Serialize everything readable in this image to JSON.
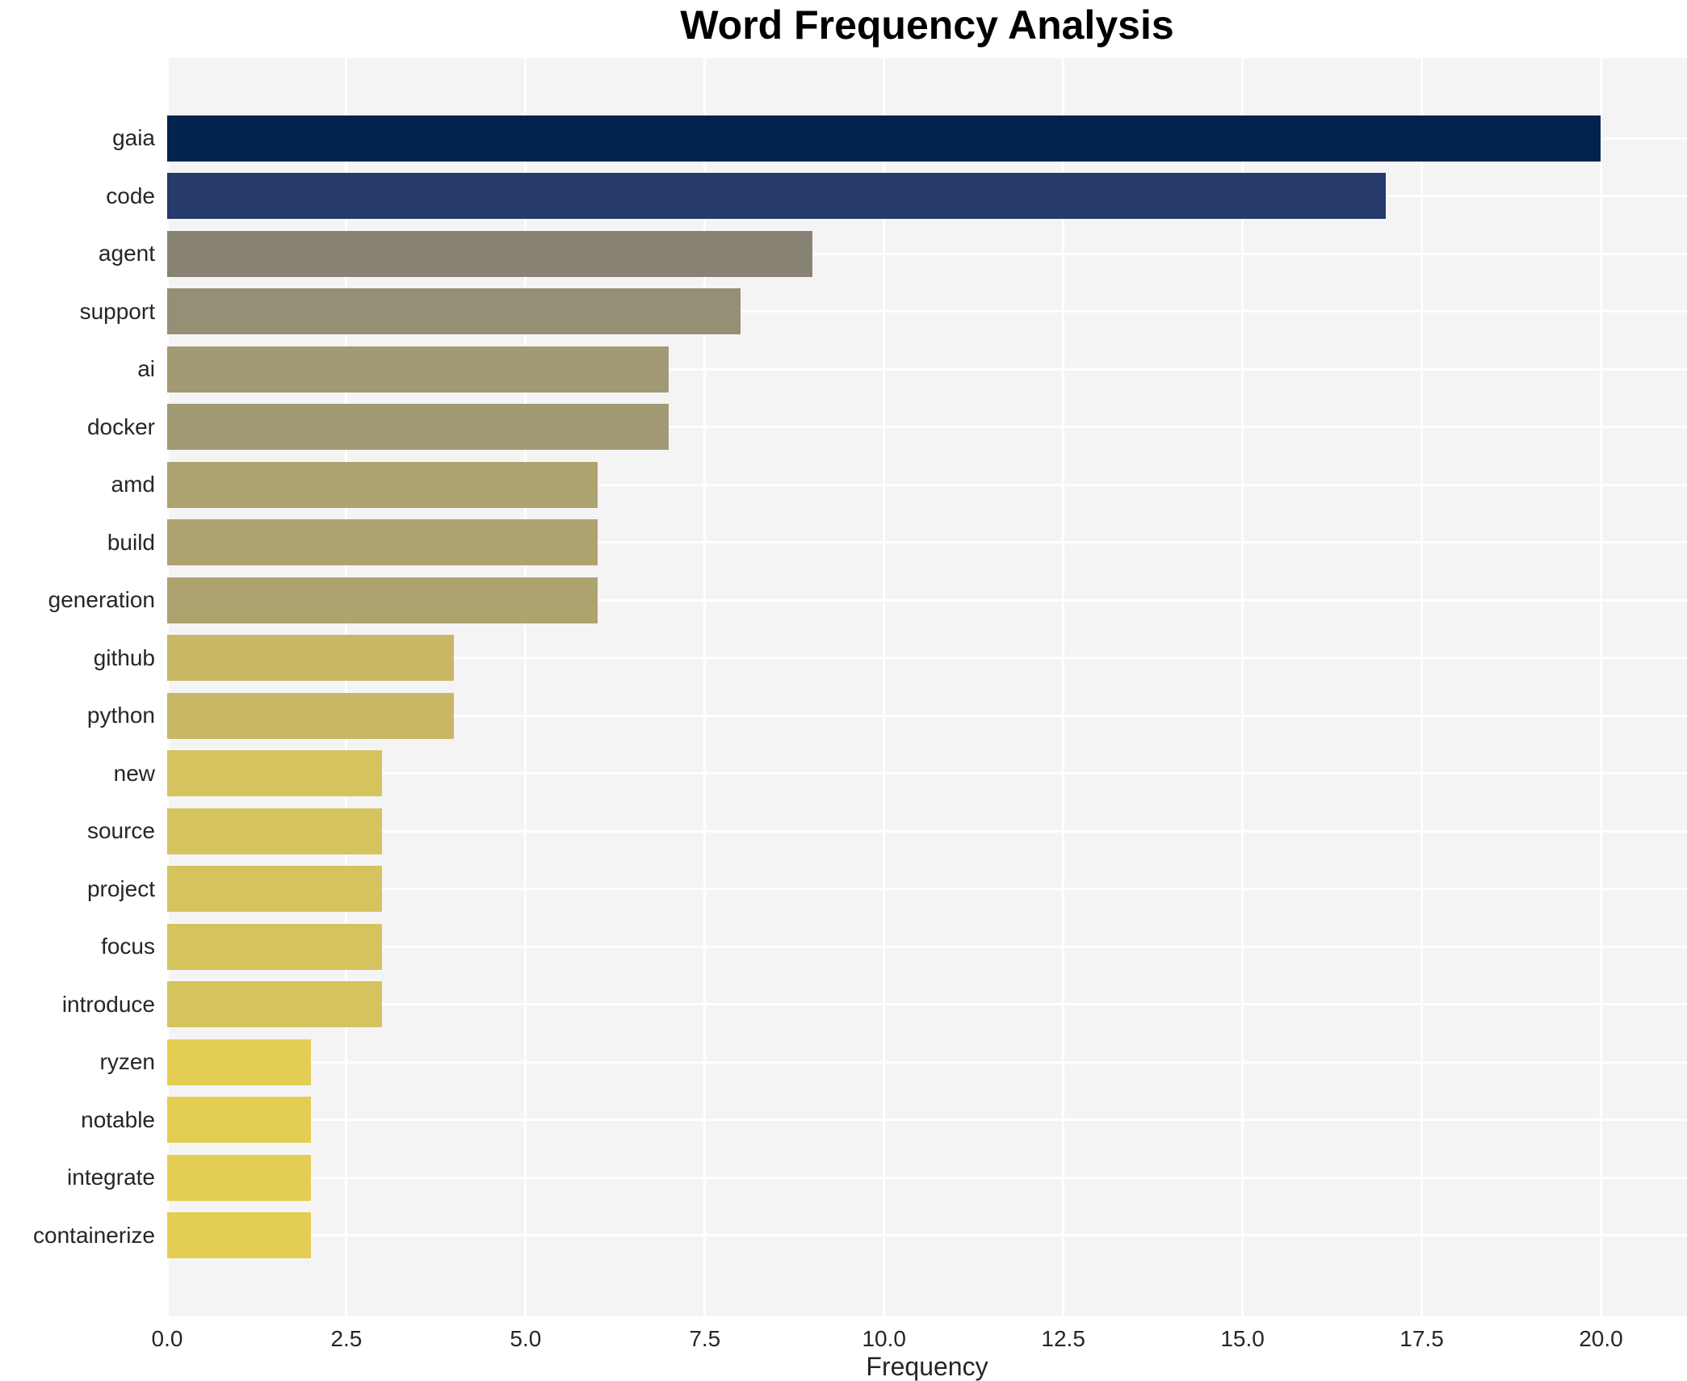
{
  "chart_data": {
    "type": "bar",
    "orientation": "horizontal",
    "title": "Word Frequency Analysis",
    "xlabel": "Frequency",
    "ylabel": "",
    "xlim": [
      0,
      21.2
    ],
    "grid": true,
    "legend": false,
    "xticks": [
      {
        "value": 0.0,
        "label": "0.0"
      },
      {
        "value": 2.5,
        "label": "2.5"
      },
      {
        "value": 5.0,
        "label": "5.0"
      },
      {
        "value": 7.5,
        "label": "7.5"
      },
      {
        "value": 10.0,
        "label": "10.0"
      },
      {
        "value": 12.5,
        "label": "12.5"
      },
      {
        "value": 15.0,
        "label": "15.0"
      },
      {
        "value": 17.5,
        "label": "17.5"
      },
      {
        "value": 20.0,
        "label": "20.0"
      }
    ],
    "categories": [
      "gaia",
      "code",
      "agent",
      "support",
      "ai",
      "docker",
      "amd",
      "build",
      "generation",
      "github",
      "python",
      "new",
      "source",
      "project",
      "focus",
      "introduce",
      "ryzen",
      "notable",
      "integrate",
      "containerize"
    ],
    "values": [
      20,
      17,
      9,
      8,
      7,
      7,
      6,
      6,
      6,
      4,
      4,
      3,
      3,
      3,
      3,
      3,
      2,
      2,
      2,
      2
    ],
    "bar_colors": [
      "#02234e",
      "#263a6b",
      "#898375",
      "#949076",
      "#a19a74",
      "#a19a74",
      "#ada36f",
      "#ada36f",
      "#ada36f",
      "#c8b765",
      "#c8b765",
      "#d5c35e",
      "#d5c35e",
      "#d5c35e",
      "#d5c35e",
      "#d5c35e",
      "#e3cd52",
      "#e3cd52",
      "#e3cd52",
      "#e3cd52"
    ]
  },
  "style": {
    "page_bg": "#ffffff",
    "plot_bg": "#f5f4f5",
    "grid_color": "#ffffff",
    "title_color": "#000000",
    "tick_label_color": "#262626"
  }
}
